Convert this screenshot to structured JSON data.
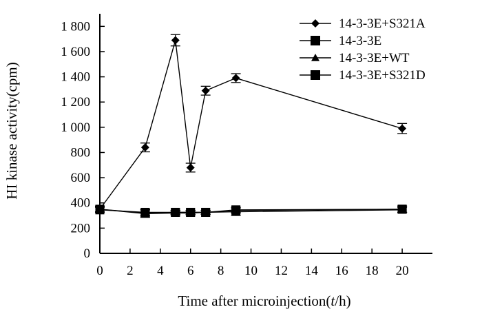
{
  "chart_data": {
    "type": "line",
    "title": "",
    "xlabel_prefix": "Time after microinjection(",
    "xlabel_var": "t",
    "xlabel_suffix": "/h)",
    "ylabel": "HI kinase activity(cpm)",
    "xlim": [
      0,
      22
    ],
    "ylim": [
      0,
      1900
    ],
    "x_ticks": [
      0,
      2,
      4,
      6,
      8,
      10,
      12,
      14,
      16,
      18,
      20
    ],
    "x_tick_labels": [
      "0",
      "2",
      "4",
      "6",
      "8",
      "10",
      "12",
      "14",
      "16",
      "18",
      "20"
    ],
    "y_ticks": [
      0,
      200,
      400,
      600,
      800,
      1000,
      1200,
      1400,
      1600,
      1800
    ],
    "y_tick_labels": [
      "0",
      "200",
      "400",
      "600",
      "800",
      "1 000",
      "1 200",
      "1 400",
      "1 600",
      "1 800"
    ],
    "grid": false,
    "legend_position": "top-right",
    "series": [
      {
        "name": "14-3-3E+S321A",
        "marker": "diamond",
        "x": [
          0,
          3,
          5,
          6,
          7,
          9,
          20
        ],
        "y": [
          350,
          840,
          1690,
          680,
          1290,
          1390,
          990
        ],
        "err": [
          25,
          35,
          45,
          35,
          35,
          35,
          40
        ]
      },
      {
        "name": "14-3-3E",
        "marker": "square",
        "x": [
          0,
          3,
          5,
          6,
          7,
          9,
          20
        ],
        "y": [
          350,
          320,
          325,
          325,
          325,
          340,
          350
        ],
        "err": [
          20,
          25,
          15,
          15,
          15,
          20,
          25
        ]
      },
      {
        "name": "14-3-3E+WT",
        "marker": "triangle",
        "x": [
          0,
          3,
          5,
          6,
          7,
          9,
          20
        ],
        "y": [
          350,
          315,
          320,
          320,
          325,
          330,
          345
        ],
        "err": [
          20,
          30,
          15,
          15,
          15,
          30,
          20
        ]
      },
      {
        "name": "14-3-3E+S321D",
        "marker": "square",
        "x": [
          0,
          3,
          5,
          6,
          7,
          9,
          20
        ],
        "y": [
          345,
          325,
          325,
          325,
          325,
          345,
          350
        ],
        "err": [
          20,
          25,
          15,
          15,
          15,
          20,
          25
        ]
      }
    ]
  }
}
